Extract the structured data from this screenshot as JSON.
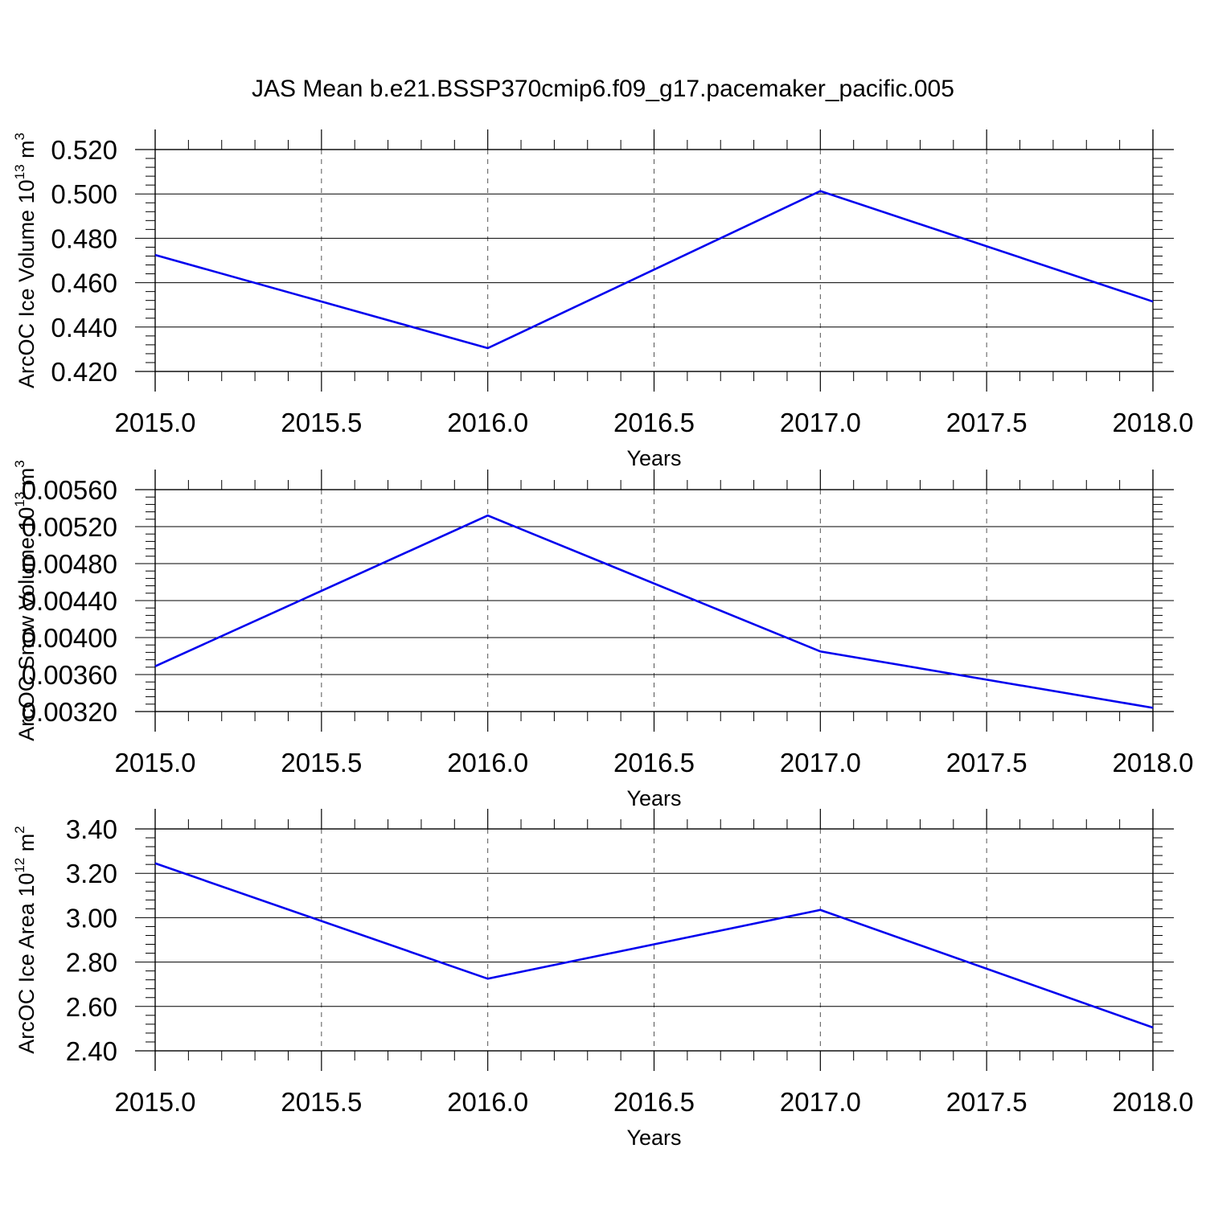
{
  "title": "JAS Mean b.e21.BSSP370cmip6.f09_g17.pacemaker_pacific.005",
  "colors": {
    "line": "#0000ee",
    "axis": "#000000",
    "grid": "#555555"
  },
  "chart_data": [
    {
      "type": "line",
      "xlabel": "Years",
      "ylabel": {
        "text": "ArcOC Ice Volume 10",
        "exp": "13",
        "unit": " m",
        "unit_exp": "3"
      },
      "xlim": [
        2015.0,
        2018.0
      ],
      "ylim": [
        0.42,
        0.52
      ],
      "x_ticks": [
        "2015.0",
        "2015.5",
        "2016.0",
        "2016.5",
        "2017.0",
        "2017.5",
        "2018.0"
      ],
      "y_ticks": [
        "0.420",
        "0.440",
        "0.460",
        "0.480",
        "0.500",
        "0.520"
      ],
      "grid": "vertical dashed",
      "x": [
        2015.0,
        2016.0,
        2017.0,
        2018.0
      ],
      "values": [
        0.4725,
        0.4305,
        0.5013,
        0.4515
      ]
    },
    {
      "type": "line",
      "xlabel": "Years",
      "ylabel": {
        "text": "ArcOC Snow Volume 10",
        "exp": "13",
        "unit": " m",
        "unit_exp": "3"
      },
      "xlim": [
        2015.0,
        2018.0
      ],
      "ylim": [
        0.0032,
        0.0056
      ],
      "x_ticks": [
        "2015.0",
        "2015.5",
        "2016.0",
        "2016.5",
        "2017.0",
        "2017.5",
        "2018.0"
      ],
      "y_ticks": [
        "0.00320",
        "0.00360",
        "0.00400",
        "0.00440",
        "0.00480",
        "0.00520",
        "0.00560"
      ],
      "grid": "vertical dashed",
      "x": [
        2015.0,
        2016.0,
        2017.0,
        2018.0
      ],
      "values": [
        0.00369,
        0.00532,
        0.00385,
        0.00324
      ]
    },
    {
      "type": "line",
      "xlabel": "Years",
      "ylabel": {
        "text": "ArcOC Ice Area 10",
        "exp": "12",
        "unit": " m",
        "unit_exp": "2"
      },
      "xlim": [
        2015.0,
        2018.0
      ],
      "ylim": [
        2.4,
        3.4
      ],
      "x_ticks": [
        "2015.0",
        "2015.5",
        "2016.0",
        "2016.5",
        "2017.0",
        "2017.5",
        "2018.0"
      ],
      "y_ticks": [
        "2.40",
        "2.60",
        "2.80",
        "3.00",
        "3.20",
        "3.40"
      ],
      "grid": "vertical dashed",
      "x": [
        2015.0,
        2016.0,
        2017.0,
        2018.0
      ],
      "values": [
        3.245,
        2.725,
        3.035,
        2.505
      ]
    }
  ]
}
